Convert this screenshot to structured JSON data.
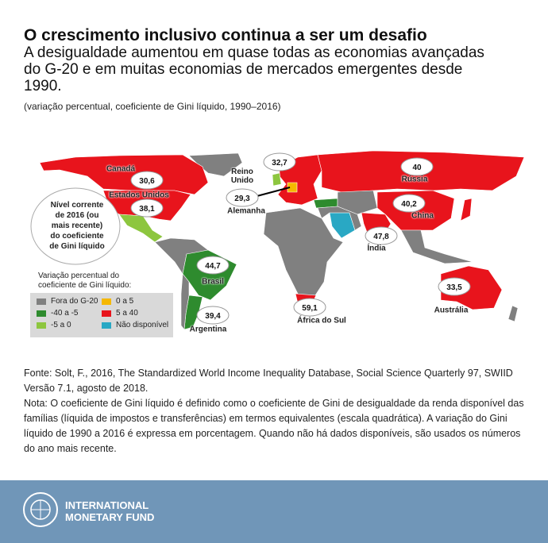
{
  "header": {
    "title": "O crescimento inclusivo continua a ser um desafio",
    "subtitle": "A desigualdade aumentou em quase todas as economias avançadas do G-20 e em muitas economias de mercados emergentes desde 1990.",
    "note": "(variação percentual, coeficiente de Gini líquido, 1990–2016)"
  },
  "map": {
    "callout": "Nível corrente de 2016 (ou mais recente) do coeficiente de Gini líquido",
    "countries": [
      {
        "name": "Canadá",
        "value": "30,6"
      },
      {
        "name": "Estados Unidos",
        "value": "38,1"
      },
      {
        "name": "Reino Unido",
        "value": "32,7"
      },
      {
        "name": "Alemanha",
        "value": "29,3"
      },
      {
        "name": "Rússia",
        "value": "40"
      },
      {
        "name": "China",
        "value": "40,2"
      },
      {
        "name": "Índia",
        "value": "47,8"
      },
      {
        "name": "Brasil",
        "value": "44,7"
      },
      {
        "name": "Argentina",
        "value": "39,4"
      },
      {
        "name": "África do Sul",
        "value": "59,1"
      },
      {
        "name": "Austrália",
        "value": "33,5"
      }
    ]
  },
  "legend": {
    "title": "Variação percentual do coeficiente de Gini líquido:",
    "items": [
      {
        "label": "Fora do G-20",
        "color": "#808080"
      },
      {
        "label": "-40 a -5",
        "color": "#2e8b2e"
      },
      {
        "label": "-5 a 0",
        "color": "#8dc63f"
      },
      {
        "label": "0 a 5",
        "color": "#f5b800"
      },
      {
        "label": "5 a 40",
        "color": "#e8141c"
      },
      {
        "label": "Não disponível",
        "color": "#29a8c4"
      }
    ]
  },
  "footer": {
    "source": "Fonte: Solt, F., 2016, The Standardized World Income Inequality Database, Social Science Quarterly 97, SWIID Versão 7.1, agosto de 2018.",
    "note": "Nota: O coeficiente de Gini líquido é definido como o coeficiente de Gini de desigualdade da renda disponível das famílias (líquida de impostos e transferências) em termos equivalentes (escala quadrática). A variação do Gini líquido de 1990 a 2016 é expressa em porcentagem. Quando não há dados disponíveis, são usados os números do ano mais recente.",
    "organization": "INTERNATIONAL MONETARY FUND"
  }
}
